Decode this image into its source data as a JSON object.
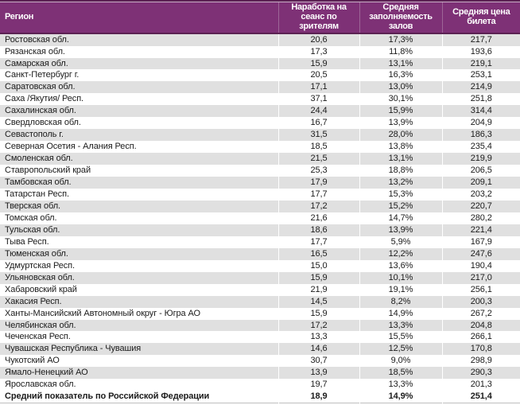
{
  "chart_data": {
    "type": "table",
    "title": "",
    "columns": [
      "Регион",
      "Наработка на сеанс по зрителям",
      "Средняя заполняемость залов",
      "Средняя цена билета"
    ],
    "rows": [
      [
        "Ростовская обл.",
        "20,6",
        "17,3%",
        "217,7"
      ],
      [
        "Рязанская обл.",
        "17,3",
        "11,8%",
        "193,6"
      ],
      [
        "Самарская обл.",
        "15,9",
        "13,1%",
        "219,1"
      ],
      [
        "Санкт-Петербург г.",
        "20,5",
        "16,3%",
        "253,1"
      ],
      [
        "Саратовская обл.",
        "17,1",
        "13,0%",
        "214,9"
      ],
      [
        "Саха /Якутия/ Респ.",
        "37,1",
        "30,1%",
        "251,8"
      ],
      [
        "Сахалинская обл.",
        "24,4",
        "15,9%",
        "314,4"
      ],
      [
        "Свердловская обл.",
        "16,7",
        "13,9%",
        "204,9"
      ],
      [
        "Севастополь г.",
        "31,5",
        "28,0%",
        "186,3"
      ],
      [
        "Северная Осетия - Алания Респ.",
        "18,5",
        "13,8%",
        "235,4"
      ],
      [
        "Смоленская обл.",
        "21,5",
        "13,1%",
        "219,9"
      ],
      [
        "Ставропольский край",
        "25,3",
        "18,8%",
        "206,5"
      ],
      [
        "Тамбовская обл.",
        "17,9",
        "13,2%",
        "209,1"
      ],
      [
        "Татарстан Респ.",
        "17,7",
        "15,3%",
        "203,2"
      ],
      [
        "Тверская обл.",
        "17,2",
        "15,2%",
        "220,7"
      ],
      [
        "Томская обл.",
        "21,6",
        "14,7%",
        "280,2"
      ],
      [
        "Тульская обл.",
        "18,6",
        "13,9%",
        "221,4"
      ],
      [
        "Тыва Респ.",
        "17,7",
        "5,9%",
        "167,9"
      ],
      [
        "Тюменская обл.",
        "16,5",
        "12,2%",
        "247,6"
      ],
      [
        "Удмуртская Респ.",
        "15,0",
        "13,6%",
        "190,4"
      ],
      [
        "Ульяновская обл.",
        "15,9",
        "10,1%",
        "217,0"
      ],
      [
        "Хабаровский край",
        "21,9",
        "19,1%",
        "256,1"
      ],
      [
        "Хакасия Респ.",
        "14,5",
        "8,2%",
        "200,3"
      ],
      [
        "Ханты-Мансийский Автономный округ - Югра АО",
        "15,9",
        "14,9%",
        "267,2"
      ],
      [
        "Челябинская обл.",
        "17,2",
        "13,3%",
        "204,8"
      ],
      [
        "Чеченская Респ.",
        "13,3",
        "15,5%",
        "266,1"
      ],
      [
        "Чувашская Республика - Чувашия",
        "14,6",
        "12,5%",
        "170,8"
      ],
      [
        "Чукотский АО",
        "30,7",
        "9,0%",
        "298,9"
      ],
      [
        "Ямало-Ненецкий АО",
        "13,9",
        "18,5%",
        "290,3"
      ],
      [
        "Ярославская обл.",
        "19,7",
        "13,3%",
        "201,3"
      ]
    ],
    "total_row": [
      "Средний показатель по Российской Федерации",
      "18,9",
      "14,9%",
      "251,4"
    ]
  },
  "colors": {
    "header_bg": "#7e3176",
    "header_border": "#5b2153",
    "header_topline": "#c9aec6",
    "header_separator": "#9d6697",
    "row_alt": "#e0e0e0",
    "row_bg": "#ffffff",
    "text": "#1b1b1b",
    "bottom_border": "#bdbdbd"
  }
}
